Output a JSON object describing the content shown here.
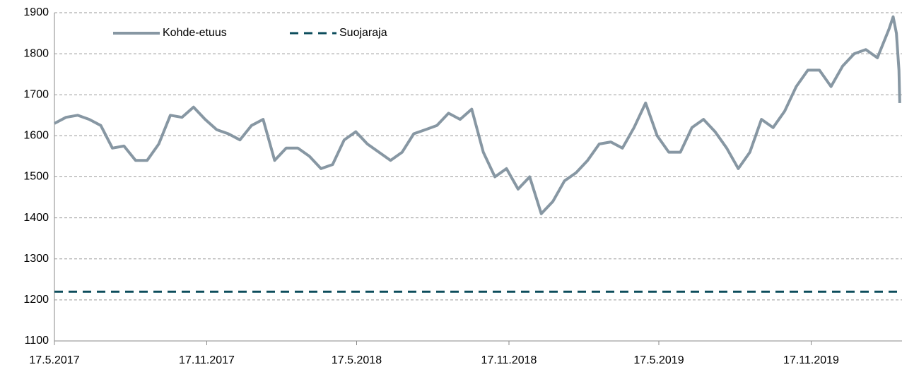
{
  "chart_data": {
    "type": "line",
    "legend": "top-left",
    "grid": true,
    "xlim": [
      "17.5.2017",
      "4.3.2020"
    ],
    "xticks": [
      "17.5.2017",
      "17.11.2017",
      "17.5.2018",
      "17.11.2018",
      "17.5.2019",
      "17.11.2019"
    ],
    "ylim": [
      1100,
      1900
    ],
    "yticks": [
      1100,
      1200,
      1300,
      1400,
      1500,
      1600,
      1700,
      1800,
      1900
    ],
    "series": [
      {
        "name": "Kohde-etuus",
        "color": "#8797a3",
        "dash": false,
        "x": [
          "17.5.2017",
          "31.5.2017",
          "14.6.2017",
          "28.6.2017",
          "12.7.2017",
          "26.7.2017",
          "9.8.2017",
          "23.8.2017",
          "6.9.2017",
          "20.9.2017",
          "4.10.2017",
          "18.10.2017",
          "1.11.2017",
          "15.11.2017",
          "29.11.2017",
          "13.12.2017",
          "27.12.2017",
          "10.1.2018",
          "24.1.2018",
          "7.2.2018",
          "21.2.2018",
          "7.3.2018",
          "21.3.2018",
          "4.4.2018",
          "18.4.2018",
          "2.5.2018",
          "16.5.2018",
          "30.5.2018",
          "13.6.2018",
          "27.6.2018",
          "11.7.2018",
          "25.7.2018",
          "8.8.2018",
          "22.8.2018",
          "5.9.2018",
          "19.9.2018",
          "3.10.2018",
          "17.10.2018",
          "31.10.2018",
          "14.11.2018",
          "28.11.2018",
          "12.12.2018",
          "26.12.2018",
          "9.1.2019",
          "23.1.2019",
          "6.2.2019",
          "20.2.2019",
          "6.3.2019",
          "20.3.2019",
          "3.4.2019",
          "17.4.2019",
          "1.5.2019",
          "15.5.2019",
          "29.5.2019",
          "12.6.2019",
          "26.6.2019",
          "10.7.2019",
          "24.7.2019",
          "7.8.2019",
          "21.8.2019",
          "4.9.2019",
          "18.9.2019",
          "2.10.2019",
          "16.10.2019",
          "30.10.2019",
          "13.11.2019",
          "27.11.2019",
          "11.12.2019",
          "25.12.2019",
          "8.1.2020",
          "22.1.2020",
          "5.2.2020",
          "19.2.2020",
          "24.2.2020",
          "28.2.2020",
          "2.3.2020",
          "3.3.2020"
        ],
        "values": [
          1630,
          1645,
          1650,
          1640,
          1625,
          1570,
          1575,
          1540,
          1540,
          1580,
          1650,
          1645,
          1670,
          1640,
          1615,
          1605,
          1590,
          1625,
          1640,
          1540,
          1570,
          1570,
          1550,
          1520,
          1530,
          1590,
          1610,
          1580,
          1560,
          1540,
          1560,
          1605,
          1615,
          1625,
          1655,
          1640,
          1665,
          1560,
          1500,
          1520,
          1470,
          1500,
          1410,
          1440,
          1490,
          1510,
          1540,
          1580,
          1585,
          1570,
          1620,
          1680,
          1600,
          1560,
          1560,
          1620,
          1640,
          1610,
          1570,
          1520,
          1560,
          1640,
          1620,
          1660,
          1720,
          1760,
          1760,
          1720,
          1770,
          1800,
          1810,
          1790,
          1860,
          1890,
          1850,
          1760,
          1680
        ]
      },
      {
        "name": "Suojaraja",
        "color": "#0d4d5c",
        "dash": true,
        "x": [
          "17.5.2017",
          "4.3.2020"
        ],
        "values": [
          1220,
          1220
        ]
      }
    ]
  }
}
